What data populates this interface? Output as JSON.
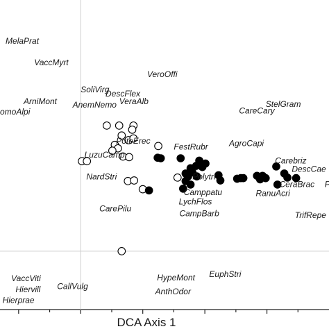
{
  "chart_data": {
    "type": "scatter",
    "title": "",
    "xlabel": "DCA Axis 1",
    "ylabel": "",
    "xlim": [
      -1.3,
      4.0
    ],
    "ylim": [
      -1.0,
      4.3
    ],
    "grid": false,
    "series": [
      {
        "marker": "open-circle",
        "points": [
          {
            "x": 0.42,
            "y": 2.15
          },
          {
            "x": 0.62,
            "y": 2.15
          },
          {
            "x": 0.85,
            "y": 2.15
          },
          {
            "x": 0.83,
            "y": 2.08
          },
          {
            "x": 0.66,
            "y": 1.98
          },
          {
            "x": 0.77,
            "y": 1.9
          },
          {
            "x": 0.85,
            "y": 1.93
          },
          {
            "x": 0.55,
            "y": 1.82
          },
          {
            "x": 0.6,
            "y": 1.76
          },
          {
            "x": 0.51,
            "y": 1.72
          },
          {
            "x": 1.25,
            "y": 1.8
          },
          {
            "x": 0.68,
            "y": 1.62
          },
          {
            "x": 0.78,
            "y": 1.61
          },
          {
            "x": 0.02,
            "y": 1.54
          },
          {
            "x": 0.1,
            "y": 1.54
          },
          {
            "x": 1.56,
            "y": 1.26
          },
          {
            "x": 0.76,
            "y": 1.2
          },
          {
            "x": 0.86,
            "y": 1.21
          },
          {
            "x": 1.0,
            "y": 1.06
          },
          {
            "x": 0.66,
            "y": 0.0
          }
        ]
      },
      {
        "marker": "filled-circle",
        "points": [
          {
            "x": 1.24,
            "y": 1.6
          },
          {
            "x": 1.29,
            "y": 1.59
          },
          {
            "x": 1.61,
            "y": 1.59
          },
          {
            "x": 1.91,
            "y": 1.55
          },
          {
            "x": 2.01,
            "y": 1.5
          },
          {
            "x": 1.96,
            "y": 1.44
          },
          {
            "x": 1.86,
            "y": 1.46
          },
          {
            "x": 1.77,
            "y": 1.42
          },
          {
            "x": 1.69,
            "y": 1.33
          },
          {
            "x": 1.73,
            "y": 1.28
          },
          {
            "x": 1.8,
            "y": 1.35
          },
          {
            "x": 1.87,
            "y": 1.28
          },
          {
            "x": 1.69,
            "y": 1.2
          },
          {
            "x": 1.77,
            "y": 1.14
          },
          {
            "x": 1.65,
            "y": 1.07
          },
          {
            "x": 2.22,
            "y": 1.3
          },
          {
            "x": 2.25,
            "y": 1.21
          },
          {
            "x": 2.52,
            "y": 1.24
          },
          {
            "x": 2.58,
            "y": 1.25
          },
          {
            "x": 2.62,
            "y": 1.25
          },
          {
            "x": 2.84,
            "y": 1.29
          },
          {
            "x": 2.89,
            "y": 1.23
          },
          {
            "x": 2.93,
            "y": 1.29
          },
          {
            "x": 2.98,
            "y": 1.25
          },
          {
            "x": 3.15,
            "y": 1.45
          },
          {
            "x": 3.28,
            "y": 1.33
          },
          {
            "x": 3.33,
            "y": 1.26
          },
          {
            "x": 3.47,
            "y": 1.25
          },
          {
            "x": 3.17,
            "y": 1.14
          },
          {
            "x": 1.1,
            "y": 1.04
          }
        ]
      }
    ],
    "species_labels": [
      {
        "text": "MelaPrat",
        "x": -1.21,
        "y": 3.55
      },
      {
        "text": "VaccMyrt",
        "x": -0.75,
        "y": 3.18
      },
      {
        "text": "VeroOffi",
        "x": 1.07,
        "y": 2.98
      },
      {
        "text": "SoliVirg",
        "x": 0.0,
        "y": 2.72
      },
      {
        "text": "DescFlex",
        "x": 0.4,
        "y": 2.65
      },
      {
        "text": "ArniMont",
        "x": -0.92,
        "y": 2.52
      },
      {
        "text": "VeraAlb",
        "x": 0.62,
        "y": 2.52
      },
      {
        "text": "AnemNemo",
        "x": -0.13,
        "y": 2.46
      },
      {
        "text": "StelGram",
        "x": 2.98,
        "y": 2.47
      },
      {
        "text": "omoAlpi",
        "x": -1.3,
        "y": 2.34
      },
      {
        "text": "CareCary",
        "x": 2.55,
        "y": 2.36
      },
      {
        "text": "PoteErec",
        "x": 0.57,
        "y": 1.84
      },
      {
        "text": "AgroCapi",
        "x": 2.39,
        "y": 1.8
      },
      {
        "text": "FestRubr",
        "x": 1.5,
        "y": 1.74
      },
      {
        "text": "LuzuCamp",
        "x": 0.06,
        "y": 1.6
      },
      {
        "text": "Carebriz",
        "x": 3.13,
        "y": 1.5
      },
      {
        "text": "DescCae",
        "x": 3.4,
        "y": 1.36
      },
      {
        "text": "Polytri",
        "x": 1.8,
        "y": 1.23
      },
      {
        "text": "NardStri",
        "x": 0.09,
        "y": 1.23
      },
      {
        "text": "CeraBrac",
        "x": 3.2,
        "y": 1.1
      },
      {
        "text": "P",
        "x": 3.93,
        "y": 1.1
      },
      {
        "text": "Camppatu",
        "x": 1.66,
        "y": 0.96
      },
      {
        "text": "RanuAcri",
        "x": 2.82,
        "y": 0.94
      },
      {
        "text": "LychFlos",
        "x": 1.58,
        "y": 0.8
      },
      {
        "text": "CarePilu",
        "x": 0.3,
        "y": 0.68
      },
      {
        "text": "CampBarb",
        "x": 1.59,
        "y": 0.6
      },
      {
        "text": "TrifRepe",
        "x": 3.45,
        "y": 0.57
      },
      {
        "text": "EuphStri",
        "x": 2.07,
        "y": -0.44
      },
      {
        "text": "HypeMont",
        "x": 1.23,
        "y": -0.5
      },
      {
        "text": "VaccViti",
        "x": -1.12,
        "y": -0.51
      },
      {
        "text": "Hiervill",
        "x": -1.05,
        "y": -0.7
      },
      {
        "text": "CallVulg",
        "x": -0.38,
        "y": -0.65
      },
      {
        "text": "AnthOdor",
        "x": 1.2,
        "y": -0.74
      },
      {
        "text": "Hierprae",
        "x": -1.26,
        "y": -0.89
      }
    ],
    "reference_lines": {
      "x": 0,
      "y": 0
    }
  }
}
